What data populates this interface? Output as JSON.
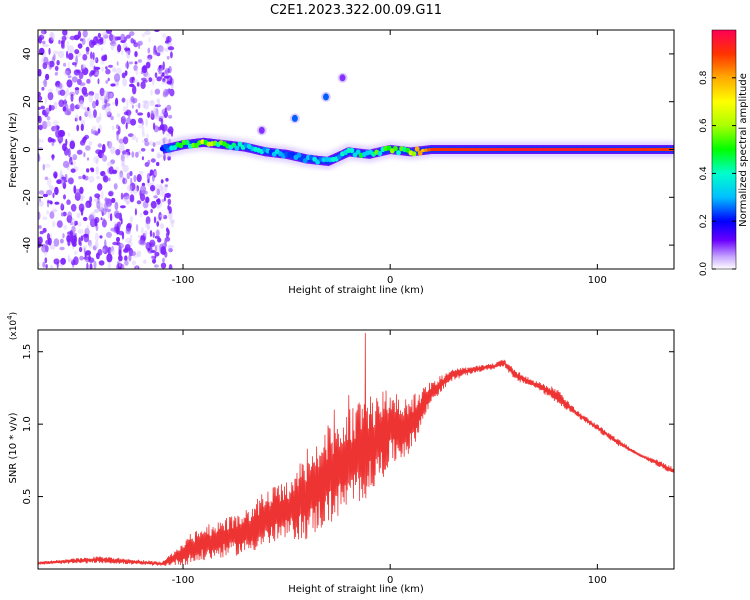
{
  "title": "C2E1.2023.322.00.09.G11",
  "chart_data": [
    {
      "type": "heatmap",
      "xlabel": "Height of straight line (km)",
      "ylabel": "Frequency (Hz)",
      "xlim": [
        -170,
        137
      ],
      "ylim": [
        -50,
        50
      ],
      "xticks": [
        -100,
        0,
        100
      ],
      "yticks": [
        -40,
        -20,
        0,
        20,
        40
      ],
      "colorbar": {
        "label": "Normalized spectral amplitude",
        "range": [
          0,
          1
        ],
        "ticks": [
          0.0,
          0.2,
          0.4,
          0.6,
          0.8
        ]
      },
      "noise_region_x": [
        -170,
        -105
      ],
      "ridge_x": [
        -110,
        -100,
        -90,
        -80,
        -70,
        -60,
        -50,
        -40,
        -30,
        -20,
        -10,
        0,
        10,
        20,
        40,
        60,
        80,
        100,
        120,
        137
      ],
      "ridge_freq": [
        0,
        2,
        3,
        2,
        1,
        -1,
        -2,
        -4,
        -5,
        -1,
        -2,
        0,
        -1,
        0,
        0,
        0,
        0,
        0,
        0,
        0
      ],
      "ridge_amplitude": [
        0.2,
        0.5,
        0.6,
        0.5,
        0.4,
        0.3,
        0.3,
        0.3,
        0.35,
        0.4,
        0.45,
        0.55,
        0.6,
        0.9,
        0.92,
        0.95,
        0.95,
        0.95,
        0.92,
        0.9
      ],
      "side_blobs": [
        {
          "x": -46,
          "y": 13,
          "amplitude": 0.25
        },
        {
          "x": -62,
          "y": 8,
          "amplitude": 0.1
        },
        {
          "x": -31,
          "y": 22,
          "amplitude": 0.25
        },
        {
          "x": -23,
          "y": 30,
          "amplitude": 0.1
        }
      ]
    },
    {
      "type": "line",
      "xlabel": "Height of straight line (km)",
      "ylabel": "SNR (10 * v/v)",
      "y_multiplier": "(x10^4)",
      "xlim": [
        -170,
        137
      ],
      "ylim": [
        0,
        16500
      ],
      "xticks": [
        -100,
        0,
        100
      ],
      "yticks": [
        0.5,
        1.0,
        1.5
      ],
      "ytick_labels": [
        "0.5",
        "1.0",
        "1.5"
      ],
      "color": "#ee3333",
      "trend_x": [
        -170,
        -140,
        -110,
        -96,
        -90,
        -80,
        -70,
        -60,
        -50,
        -40,
        -30,
        -20,
        -10,
        0,
        10,
        20,
        30,
        40,
        50,
        55,
        60,
        70,
        80,
        90,
        100,
        110,
        120,
        130,
        137
      ],
      "trend_upper": [
        500,
        900,
        500,
        2500,
        3000,
        3500,
        4000,
        5500,
        6000,
        8000,
        10000,
        11000,
        12000,
        12500,
        12000,
        13000,
        13800,
        14000,
        14200,
        14500,
        13800,
        13000,
        12500,
        11000,
        10000,
        9000,
        8000,
        7500,
        7000
      ],
      "trend_lower": [
        300,
        400,
        200,
        300,
        500,
        800,
        1000,
        1500,
        2000,
        2000,
        3000,
        4000,
        5000,
        7000,
        8000,
        11500,
        13000,
        13500,
        13800,
        14000,
        13000,
        12500,
        11500,
        10500,
        9500,
        8500,
        7800,
        7000,
        6500
      ],
      "spikes": [
        {
          "x": -12,
          "y": 16300
        },
        {
          "x": -27,
          "y": 11000
        },
        {
          "x": -40,
          "y": 8300
        },
        {
          "x": -20,
          "y": 12000
        }
      ]
    }
  ]
}
